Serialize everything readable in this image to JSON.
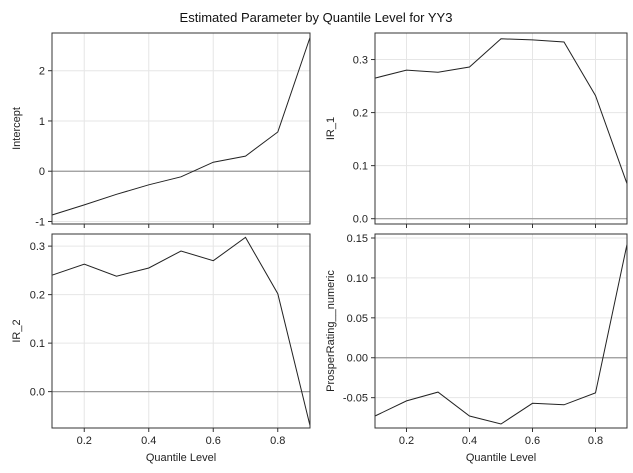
{
  "figure": {
    "title": "Estimated Parameter by Quantile Level for YY3"
  },
  "chart_data": [
    {
      "type": "line",
      "ylabel": "Intercept",
      "xlabel": "",
      "xlim": [
        0.1,
        0.9
      ],
      "ylim": [
        -1.05,
        2.75
      ],
      "yticks": [
        -1,
        0,
        1,
        2
      ],
      "xticks": [
        0.2,
        0.4,
        0.6,
        0.8
      ],
      "show_xtick_labels": false,
      "reference_line": 0,
      "grid": true,
      "x": [
        0.1,
        0.2,
        0.3,
        0.4,
        0.5,
        0.6,
        0.7,
        0.8,
        0.9
      ],
      "series": [
        {
          "values": [
            -0.87,
            -0.67,
            -0.46,
            -0.27,
            -0.11,
            0.18,
            0.3,
            0.78,
            2.66
          ]
        }
      ]
    },
    {
      "type": "line",
      "ylabel": "IR_1",
      "xlabel": "",
      "xlim": [
        0.1,
        0.9
      ],
      "ylim": [
        -0.01,
        0.35
      ],
      "yticks": [
        0.0,
        0.1,
        0.2,
        0.3
      ],
      "ytick_labels": [
        "0.0",
        "0.1",
        "0.2",
        "0.3"
      ],
      "xticks": [
        0.2,
        0.4,
        0.6,
        0.8
      ],
      "show_xtick_labels": false,
      "reference_line": 0,
      "grid": true,
      "x": [
        0.1,
        0.2,
        0.3,
        0.4,
        0.5,
        0.6,
        0.7,
        0.8,
        0.9
      ],
      "series": [
        {
          "values": [
            0.265,
            0.28,
            0.276,
            0.286,
            0.339,
            0.337,
            0.333,
            0.232,
            0.066
          ]
        }
      ]
    },
    {
      "type": "line",
      "ylabel": "IR_2",
      "xlabel": "Quantile Level",
      "xlim": [
        0.1,
        0.9
      ],
      "ylim": [
        -0.075,
        0.325
      ],
      "yticks": [
        0.0,
        0.1,
        0.2,
        0.3
      ],
      "ytick_labels": [
        "0.0",
        "0.1",
        "0.2",
        "0.3"
      ],
      "xticks": [
        0.2,
        0.4,
        0.6,
        0.8
      ],
      "xtick_labels": [
        "0.2",
        "0.4",
        "0.6",
        "0.8"
      ],
      "show_xtick_labels": true,
      "reference_line": 0,
      "grid": true,
      "x": [
        0.1,
        0.2,
        0.3,
        0.4,
        0.5,
        0.6,
        0.7,
        0.8,
        0.9
      ],
      "series": [
        {
          "values": [
            0.24,
            0.263,
            0.238,
            0.255,
            0.29,
            0.27,
            0.318,
            0.202,
            -0.07
          ]
        }
      ]
    },
    {
      "type": "line",
      "ylabel": "ProsperRating__numeric",
      "xlabel": "Quantile Level",
      "xlim": [
        0.1,
        0.9
      ],
      "ylim": [
        -0.088,
        0.155
      ],
      "yticks": [
        -0.05,
        0.0,
        0.05,
        0.1,
        0.15
      ],
      "ytick_labels": [
        "-0.05",
        "0.00",
        "0.05",
        "0.10",
        "0.15"
      ],
      "xticks": [
        0.2,
        0.4,
        0.6,
        0.8
      ],
      "xtick_labels": [
        "0.2",
        "0.4",
        "0.6",
        "0.8"
      ],
      "show_xtick_labels": true,
      "reference_line": 0,
      "grid": true,
      "x": [
        0.1,
        0.2,
        0.3,
        0.4,
        0.5,
        0.6,
        0.7,
        0.8,
        0.9
      ],
      "series": [
        {
          "values": [
            -0.073,
            -0.054,
            -0.043,
            -0.073,
            -0.083,
            -0.057,
            -0.059,
            -0.044,
            0.142
          ]
        }
      ]
    }
  ],
  "colors": {
    "line": "#222222",
    "reference": "#999999",
    "grid": "#e6e6e6",
    "frame": "#333333"
  }
}
